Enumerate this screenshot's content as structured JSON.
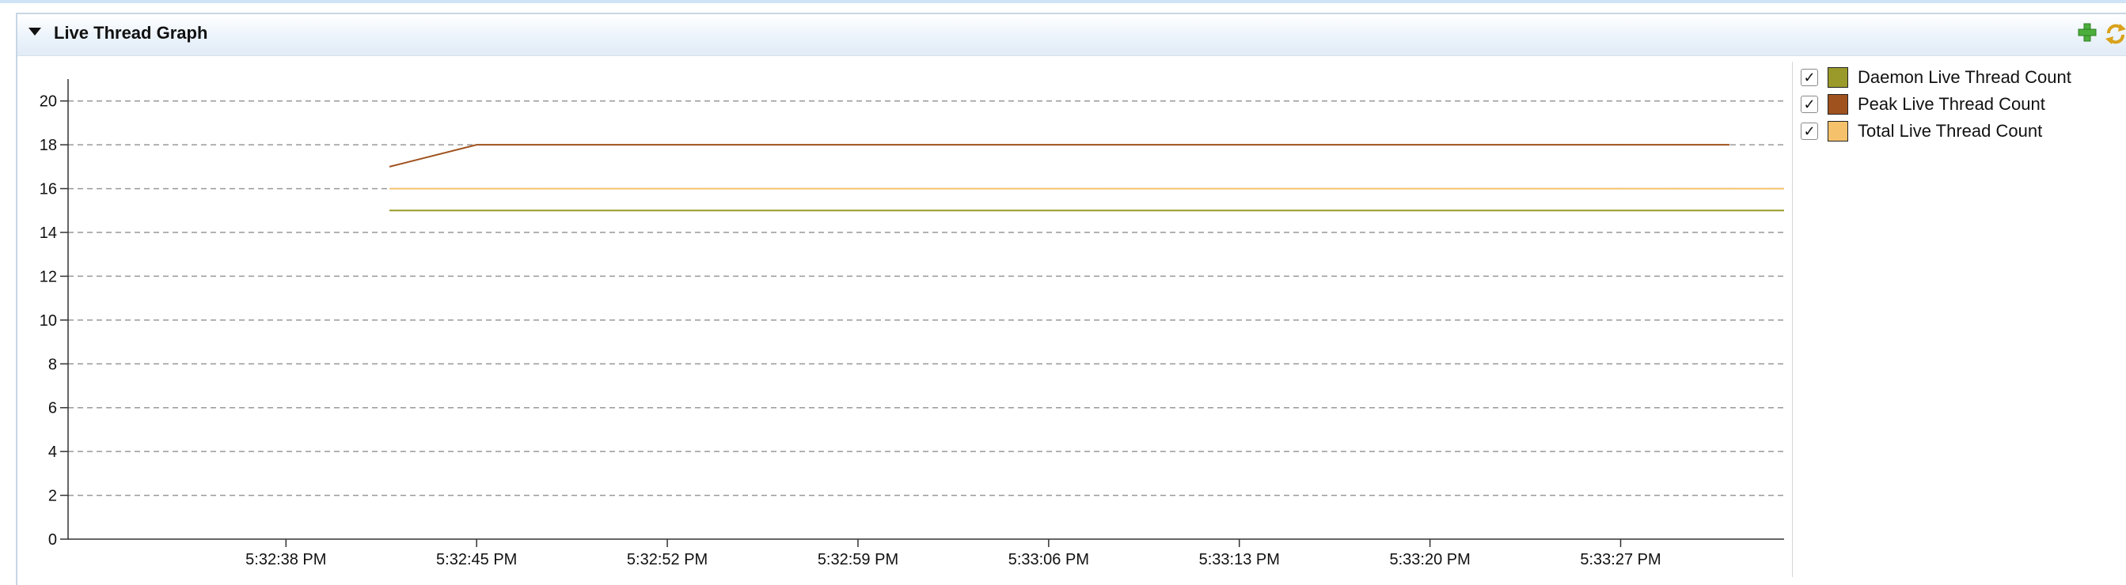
{
  "section": {
    "title": "Live Thread Graph"
  },
  "header_icons": [
    "plus-icon",
    "refresh-icon"
  ],
  "colors": {
    "daemon": "#9a9a2a",
    "peak": "#a0521e",
    "total": "#f5c26b",
    "grid": "#999999",
    "axis": "#333333"
  },
  "legend": {
    "items": [
      {
        "label": "Daemon Live Thread Count",
        "checked": true,
        "color": "#9a9a2a",
        "check": "✓"
      },
      {
        "label": "Peak Live Thread Count",
        "checked": true,
        "color": "#a0521e",
        "check": "✓"
      },
      {
        "label": "Total Live Thread Count",
        "checked": true,
        "color": "#f5c26b",
        "check": "✓"
      }
    ]
  },
  "chart_data": {
    "type": "line",
    "ylim": [
      0,
      21
    ],
    "yticks": [
      0,
      2,
      4,
      6,
      8,
      10,
      12,
      14,
      16,
      18,
      20
    ],
    "xticks": [
      "5:32:38 PM",
      "5:32:45 PM",
      "5:32:52 PM",
      "5:32:59 PM",
      "5:33:06 PM",
      "5:33:13 PM",
      "5:33:20 PM",
      "5:33:27 PM"
    ],
    "xlim_seconds": [
      30,
      93
    ],
    "grid": true,
    "series": [
      {
        "name": "Daemon Live Thread Count",
        "color": "#9a9a2a",
        "x": [
          41.8,
          93
        ],
        "y": [
          15,
          15
        ]
      },
      {
        "name": "Peak Live Thread Count",
        "color": "#a0521e",
        "x": [
          41.8,
          45,
          91
        ],
        "y": [
          17,
          18,
          18
        ]
      },
      {
        "name": "Total Live Thread Count",
        "color": "#f5c26b",
        "x": [
          41.8,
          93
        ],
        "y": [
          16,
          16
        ]
      }
    ]
  }
}
